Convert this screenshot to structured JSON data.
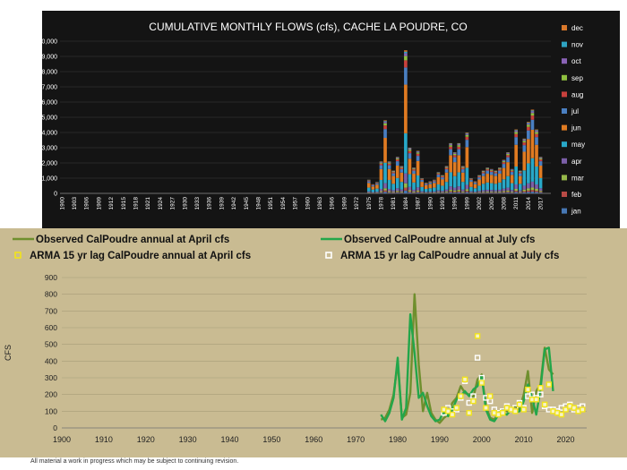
{
  "footer_note": "All material a work in progress which may be subject to continuing revision.",
  "chart_data": [
    {
      "type": "bar",
      "stacked": true,
      "title": "CUMULATIVE MONTHLY FLOWS (cfs),  CACHE LA POUDRE, CO",
      "xlabel": "",
      "ylabel": "",
      "ylim": [
        0,
        10000
      ],
      "yticks": [
        "0",
        "1,000",
        "2,000",
        "3,000",
        "4,000",
        "5,000",
        "6,000",
        "7,000",
        "8,000",
        "9,000",
        "10,000"
      ],
      "xticks": [
        "1900",
        "1903",
        "1906",
        "1909",
        "1912",
        "1915",
        "1918",
        "1921",
        "1924",
        "1927",
        "1930",
        "1933",
        "1936",
        "1939",
        "1942",
        "1945",
        "1948",
        "1951",
        "1954",
        "1957",
        "1960",
        "1963",
        "1966",
        "1969",
        "1972",
        "1975",
        "1978",
        "1981",
        "1984",
        "1987",
        "1990",
        "1993",
        "1996",
        "1999",
        "2002",
        "2005",
        "2008",
        "2011",
        "2014",
        "2017"
      ],
      "legend_position": "right",
      "background": "#141414",
      "series": [
        {
          "name": "dec",
          "color": "#d9782b"
        },
        {
          "name": "nov",
          "color": "#2ea3c2"
        },
        {
          "name": "oct",
          "color": "#8a63b6"
        },
        {
          "name": "sep",
          "color": "#8ebf3f"
        },
        {
          "name": "aug",
          "color": "#c8403c"
        },
        {
          "name": "jul",
          "color": "#4a7fc1"
        },
        {
          "name": "jun",
          "color": "#e07b22"
        },
        {
          "name": "may",
          "color": "#28a8c8"
        },
        {
          "name": "apr",
          "color": "#7b5fa8"
        },
        {
          "name": "mar",
          "color": "#96b84a"
        },
        {
          "name": "feb",
          "color": "#b84a46"
        },
        {
          "name": "jan",
          "color": "#4777b4"
        }
      ],
      "years": [
        1975,
        1976,
        1977,
        1978,
        1979,
        1980,
        1981,
        1982,
        1983,
        1984,
        1985,
        1986,
        1987,
        1988,
        1989,
        1990,
        1991,
        1992,
        1993,
        1994,
        1995,
        1996,
        1997,
        1998,
        1999,
        2000,
        2001,
        2002,
        2003,
        2004,
        2005,
        2006,
        2007,
        2008,
        2009,
        2010,
        2011,
        2012,
        2013,
        2014,
        2015,
        2016,
        2017
      ],
      "totals": [
        900,
        600,
        750,
        2100,
        4800,
        2100,
        1500,
        2400,
        1800,
        9400,
        3000,
        1700,
        2800,
        1000,
        700,
        800,
        900,
        1400,
        1200,
        1800,
        3300,
        2700,
        3300,
        1800,
        4000,
        1000,
        800,
        1200,
        1500,
        1700,
        1600,
        1500,
        1700,
        2200,
        2700,
        1600,
        4200,
        1500,
        3600,
        4700,
        5500,
        4200,
        2400
      ]
    },
    {
      "type": "line",
      "xlabel": "",
      "ylabel": "CFS",
      "xlim": [
        1900,
        2025
      ],
      "ylim": [
        0,
        900
      ],
      "xticks": [
        "1900",
        "1910",
        "1920",
        "1930",
        "1940",
        "1950",
        "1960",
        "1970",
        "1980",
        "1990",
        "2000",
        "2010",
        "2020"
      ],
      "yticks": [
        "0",
        "100",
        "200",
        "300",
        "400",
        "500",
        "600",
        "700",
        "800",
        "900"
      ],
      "background": "#c9bb92",
      "series": [
        {
          "name": "Observed CalPoudre annual at April cfs",
          "color": "#6f8f2e",
          "x": [
            1976,
            1977,
            1978,
            1979,
            1980,
            1981,
            1982,
            1983,
            1984,
            1985,
            1986,
            1987,
            1988,
            1989,
            1990,
            1991,
            1992,
            1993,
            1994,
            1995,
            1996,
            1997,
            1998,
            1999,
            2000,
            2001,
            2002,
            2003,
            2004,
            2005,
            2006,
            2007,
            2008,
            2009,
            2010,
            2011,
            2012,
            2013,
            2014,
            2015,
            2016,
            2017
          ],
          "y": [
            50,
            60,
            110,
            200,
            390,
            60,
            80,
            210,
            800,
            380,
            100,
            210,
            90,
            50,
            30,
            60,
            80,
            150,
            180,
            250,
            210,
            200,
            180,
            290,
            320,
            130,
            60,
            50,
            90,
            110,
            100,
            120,
            130,
            110,
            200,
            340,
            90,
            220,
            260,
            480,
            350,
            320
          ]
        },
        {
          "name": "Observed CalPoudre annual at July cfs",
          "color": "#23a64a",
          "x": [
            1976,
            1977,
            1978,
            1979,
            1980,
            1981,
            1982,
            1983,
            1984,
            1985,
            1986,
            1987,
            1988,
            1989,
            1990,
            1991,
            1992,
            1993,
            1994,
            1995,
            1996,
            1997,
            1998,
            1999,
            2000,
            2001,
            2002,
            2003,
            2004,
            2005,
            2006,
            2007,
            2008,
            2009,
            2010,
            2011,
            2012,
            2013,
            2014,
            2015,
            2016,
            2017
          ],
          "y": [
            80,
            40,
            90,
            180,
            420,
            50,
            120,
            680,
            450,
            180,
            210,
            130,
            70,
            40,
            50,
            100,
            70,
            110,
            170,
            190,
            220,
            190,
            230,
            250,
            310,
            110,
            50,
            40,
            80,
            90,
            80,
            110,
            90,
            100,
            160,
            260,
            180,
            80,
            230,
            470,
            480,
            220
          ]
        },
        {
          "name": "ARMA 15 yr lag CalPoudre annual at April cfs",
          "color": "#f2e41a",
          "marker": "square",
          "x": [
            1991,
            1992,
            1993,
            1994,
            1995,
            1996,
            1997,
            1998,
            1999,
            2000,
            2001,
            2002,
            2003,
            2004,
            2005,
            2006,
            2007,
            2008,
            2009,
            2010,
            2011,
            2012,
            2013,
            2014,
            2015,
            2016,
            2017,
            2018,
            2019,
            2020,
            2021,
            2022,
            2023,
            2024
          ],
          "y": [
            110,
            100,
            80,
            120,
            190,
            290,
            90,
            160,
            550,
            270,
            120,
            190,
            90,
            80,
            90,
            120,
            110,
            100,
            140,
            110,
            230,
            170,
            170,
            240,
            140,
            260,
            100,
            90,
            80,
            110,
            130,
            120,
            100,
            110
          ]
        },
        {
          "name": "ARMA 15 yr lag CalPoudre annual at July cfs",
          "color": "#ffffff",
          "marker": "square",
          "x": [
            1991,
            1992,
            1993,
            1994,
            1995,
            1996,
            1997,
            1998,
            1999,
            2000,
            2001,
            2002,
            2003,
            2004,
            2005,
            2006,
            2007,
            2008,
            2009,
            2010,
            2011,
            2012,
            2013,
            2014,
            2015,
            2016,
            2017,
            2018,
            2019,
            2020,
            2021,
            2022,
            2023,
            2024
          ],
          "y": [
            90,
            120,
            100,
            110,
            180,
            280,
            150,
            190,
            420,
            300,
            180,
            160,
            110,
            90,
            100,
            130,
            110,
            120,
            150,
            120,
            190,
            200,
            180,
            200,
            130,
            110,
            110,
            100,
            120,
            130,
            140,
            110,
            120,
            130
          ]
        }
      ]
    }
  ]
}
